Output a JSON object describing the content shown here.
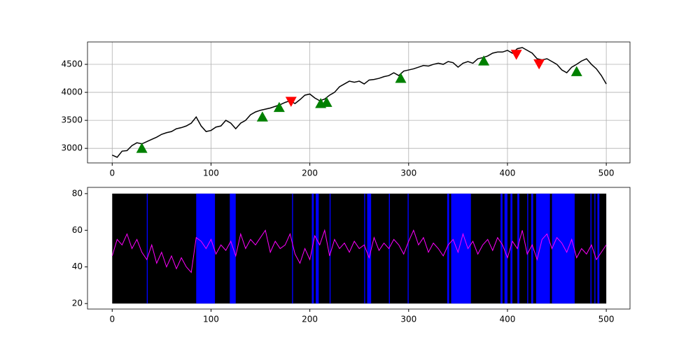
{
  "chart_data": [
    {
      "type": "line",
      "color": "#000000",
      "x": [
        0,
        5,
        10,
        15,
        20,
        25,
        30,
        35,
        40,
        45,
        50,
        55,
        60,
        65,
        70,
        75,
        80,
        85,
        90,
        95,
        100,
        105,
        110,
        115,
        120,
        125,
        130,
        135,
        140,
        145,
        150,
        155,
        160,
        165,
        170,
        175,
        180,
        185,
        190,
        195,
        200,
        205,
        210,
        215,
        220,
        225,
        230,
        235,
        240,
        245,
        250,
        255,
        260,
        265,
        270,
        275,
        280,
        285,
        290,
        295,
        300,
        305,
        310,
        315,
        320,
        325,
        330,
        335,
        340,
        345,
        350,
        355,
        360,
        365,
        370,
        375,
        380,
        385,
        390,
        395,
        400,
        405,
        410,
        415,
        420,
        425,
        430,
        435,
        440,
        445,
        450,
        455,
        460,
        465,
        470,
        475,
        480,
        485,
        490,
        495,
        500
      ],
      "values": [
        2880,
        2840,
        2950,
        2960,
        3050,
        3100,
        3080,
        3120,
        3160,
        3200,
        3250,
        3280,
        3300,
        3350,
        3370,
        3400,
        3450,
        3560,
        3400,
        3300,
        3320,
        3380,
        3400,
        3500,
        3450,
        3350,
        3450,
        3500,
        3600,
        3650,
        3680,
        3700,
        3720,
        3750,
        3780,
        3820,
        3850,
        3800,
        3870,
        3950,
        3970,
        3900,
        3850,
        3880,
        3950,
        4000,
        4100,
        4150,
        4200,
        4180,
        4200,
        4150,
        4220,
        4230,
        4250,
        4280,
        4300,
        4350,
        4300,
        4380,
        4400,
        4420,
        4450,
        4480,
        4470,
        4500,
        4520,
        4500,
        4550,
        4530,
        4450,
        4520,
        4550,
        4520,
        4600,
        4620,
        4650,
        4700,
        4720,
        4720,
        4750,
        4700,
        4780,
        4800,
        4750,
        4700,
        4600,
        4580,
        4600,
        4550,
        4500,
        4400,
        4350,
        4450,
        4500,
        4560,
        4600,
        4500,
        4420,
        4300,
        4150
      ],
      "markers": [
        {
          "marker": "^",
          "color": "#008000",
          "x": [
            30,
            152,
            169,
            211,
            217,
            292,
            376,
            470
          ],
          "values": [
            3000,
            3560,
            3730,
            3800,
            3820,
            4250,
            4560,
            4370
          ]
        },
        {
          "marker": "v",
          "color": "#ff0000",
          "x": [
            181,
            409,
            432
          ],
          "values": [
            3840,
            4680,
            4510
          ]
        }
      ],
      "xlim": [
        -25,
        524
      ],
      "ylim": [
        2740,
        4900
      ],
      "xticks": [
        0,
        100,
        200,
        300,
        400,
        500
      ],
      "yticks": [
        3000,
        3500,
        4000,
        4500
      ],
      "grid": true
    },
    {
      "type": "line",
      "color": "#ff00ff",
      "x": [
        0,
        5,
        10,
        15,
        20,
        25,
        30,
        35,
        40,
        45,
        50,
        55,
        60,
        65,
        70,
        75,
        80,
        85,
        90,
        95,
        100,
        105,
        110,
        115,
        120,
        125,
        130,
        135,
        140,
        145,
        150,
        155,
        160,
        165,
        170,
        175,
        180,
        185,
        190,
        195,
        200,
        205,
        210,
        215,
        220,
        225,
        230,
        235,
        240,
        245,
        250,
        255,
        260,
        265,
        270,
        275,
        280,
        285,
        290,
        295,
        300,
        305,
        310,
        315,
        320,
        325,
        330,
        335,
        340,
        345,
        350,
        355,
        360,
        365,
        370,
        375,
        380,
        385,
        390,
        395,
        400,
        405,
        410,
        415,
        420,
        425,
        430,
        435,
        440,
        445,
        450,
        455,
        460,
        465,
        470,
        475,
        480,
        485,
        490,
        495,
        500
      ],
      "values": [
        46,
        55,
        52,
        58,
        50,
        55,
        48,
        44,
        52,
        42,
        48,
        40,
        46,
        39,
        45,
        40,
        37,
        56,
        54,
        50,
        55,
        47,
        52,
        49,
        54,
        46,
        58,
        50,
        55,
        52,
        56,
        60,
        48,
        54,
        50,
        52,
        58,
        47,
        42,
        50,
        44,
        57,
        52,
        60,
        46,
        55,
        50,
        53,
        48,
        54,
        50,
        52,
        45,
        56,
        49,
        53,
        50,
        55,
        52,
        47,
        54,
        60,
        52,
        56,
        48,
        53,
        50,
        46,
        52,
        55,
        48,
        58,
        50,
        54,
        47,
        52,
        55,
        49,
        56,
        52,
        45,
        54,
        50,
        60,
        47,
        52,
        44,
        55,
        58,
        50,
        56,
        53,
        48,
        55,
        45,
        50,
        47,
        52,
        44,
        48,
        52
      ],
      "regions": [
        {
          "start": 0,
          "end": 500,
          "color": "#000000"
        },
        {
          "start": 35,
          "end": 36,
          "color": "#0000ff"
        },
        {
          "start": 85,
          "end": 104,
          "color": "#0000ff"
        },
        {
          "start": 119,
          "end": 125,
          "color": "#0000ff"
        },
        {
          "start": 182,
          "end": 183,
          "color": "#0000ff"
        },
        {
          "start": 202,
          "end": 204,
          "color": "#0000ff"
        },
        {
          "start": 206,
          "end": 209,
          "color": "#0000ff"
        },
        {
          "start": 220,
          "end": 221,
          "color": "#0000ff"
        },
        {
          "start": 255,
          "end": 256,
          "color": "#0000ff"
        },
        {
          "start": 258,
          "end": 262,
          "color": "#0000ff"
        },
        {
          "start": 280,
          "end": 281,
          "color": "#0000ff"
        },
        {
          "start": 299,
          "end": 300,
          "color": "#0000ff"
        },
        {
          "start": 339,
          "end": 341,
          "color": "#0000ff"
        },
        {
          "start": 343,
          "end": 363,
          "color": "#0000ff"
        },
        {
          "start": 393,
          "end": 395,
          "color": "#0000ff"
        },
        {
          "start": 397,
          "end": 400,
          "color": "#0000ff"
        },
        {
          "start": 403,
          "end": 405,
          "color": "#0000ff"
        },
        {
          "start": 410,
          "end": 412,
          "color": "#0000ff"
        },
        {
          "start": 420,
          "end": 421,
          "color": "#0000ff"
        },
        {
          "start": 424,
          "end": 426,
          "color": "#0000ff"
        },
        {
          "start": 429,
          "end": 443,
          "color": "#0000ff"
        },
        {
          "start": 445,
          "end": 468,
          "color": "#0000ff"
        },
        {
          "start": 484,
          "end": 485,
          "color": "#0000ff"
        },
        {
          "start": 488,
          "end": 489,
          "color": "#0000ff"
        },
        {
          "start": 491,
          "end": 493,
          "color": "#0000ff"
        }
      ],
      "region_y": [
        20,
        80
      ],
      "xlim": [
        -25,
        524
      ],
      "ylim": [
        17,
        83.4
      ],
      "xticks": [
        0,
        100,
        200,
        300,
        400,
        500
      ],
      "yticks": [
        20,
        40,
        60,
        80
      ],
      "grid": false
    }
  ]
}
